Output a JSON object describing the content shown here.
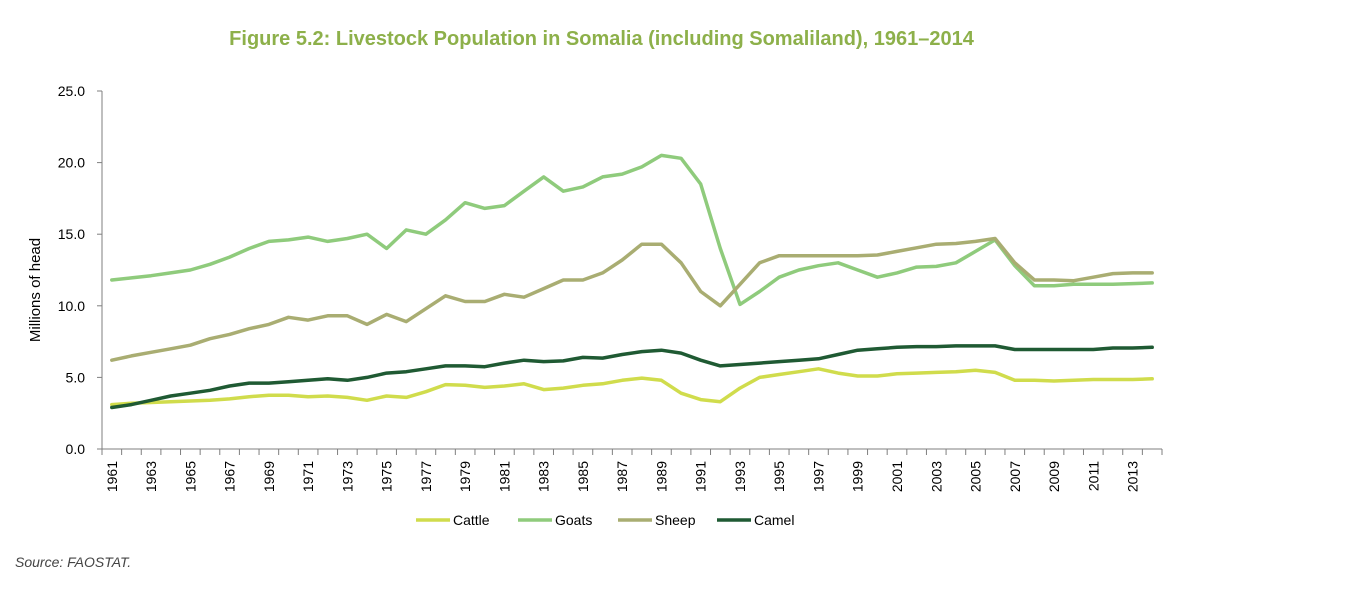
{
  "source": "Source: FAOSTAT.",
  "colors": {
    "title": "#8db04a",
    "cattle": "#d0dc4c",
    "goats": "#8fcb7c",
    "sheep": "#a9ad72",
    "camel": "#1f5a33",
    "axis": "#7f7f7f"
  },
  "chart_data": {
    "type": "line",
    "title": "Figure 5.2: Livestock Population in Somalia (including Somaliland), 1961–2014",
    "xlabel": "",
    "ylabel": "Millions of head",
    "ylim": [
      0,
      25
    ],
    "yticks": [
      "0.0",
      "5.0",
      "10.0",
      "15.0",
      "20.0",
      "25.0"
    ],
    "x": [
      1961,
      1962,
      1963,
      1964,
      1965,
      1966,
      1967,
      1968,
      1969,
      1970,
      1971,
      1972,
      1973,
      1974,
      1975,
      1976,
      1977,
      1978,
      1979,
      1980,
      1981,
      1982,
      1983,
      1984,
      1985,
      1986,
      1987,
      1988,
      1989,
      1990,
      1991,
      1992,
      1993,
      1994,
      1995,
      1996,
      1997,
      1998,
      1999,
      2000,
      2001,
      2002,
      2003,
      2004,
      2005,
      2006,
      2007,
      2008,
      2009,
      2010,
      2011,
      2012,
      2013,
      2014
    ],
    "xticks": [
      "1961",
      "1963",
      "1965",
      "1967",
      "1969",
      "1971",
      "1973",
      "1975",
      "1977",
      "1979",
      "1981",
      "1983",
      "1985",
      "1987",
      "1989",
      "1991",
      "1993",
      "1995",
      "1997",
      "1999",
      "2001",
      "2003",
      "2005",
      "2007",
      "2009",
      "2011",
      "2013"
    ],
    "legend_position": "bottom",
    "series": [
      {
        "name": "Cattle",
        "color": "#d0dc4c",
        "values": [
          3.1,
          3.2,
          3.25,
          3.3,
          3.35,
          3.4,
          3.5,
          3.65,
          3.75,
          3.75,
          3.65,
          3.7,
          3.6,
          3.4,
          3.7,
          3.6,
          4.0,
          4.5,
          4.45,
          4.3,
          4.4,
          4.55,
          4.15,
          4.25,
          4.45,
          4.55,
          4.8,
          4.95,
          4.8,
          3.9,
          3.45,
          3.3,
          4.25,
          5.0,
          5.2,
          5.4,
          5.6,
          5.3,
          5.1,
          5.1,
          5.25,
          5.3,
          5.35,
          5.4,
          5.5,
          5.35,
          4.8,
          4.8,
          4.75,
          4.8,
          4.85,
          4.85,
          4.85,
          4.9
        ]
      },
      {
        "name": "Goats",
        "color": "#8fcb7c",
        "values": [
          11.8,
          11.95,
          12.1,
          12.3,
          12.5,
          12.9,
          13.4,
          14.0,
          14.5,
          14.6,
          14.8,
          14.5,
          14.7,
          15.0,
          14.0,
          15.3,
          15.0,
          16.0,
          17.2,
          16.8,
          17.0,
          18.0,
          19.0,
          18.0,
          18.3,
          19.0,
          19.2,
          19.7,
          20.5,
          20.3,
          18.5,
          14.0,
          10.1,
          11.0,
          12.0,
          12.5,
          12.8,
          13.0,
          12.5,
          12.0,
          12.3,
          12.7,
          12.75,
          13.0,
          13.8,
          14.6,
          12.8,
          11.4,
          11.4,
          11.5,
          11.5,
          11.5,
          11.55,
          11.6
        ]
      },
      {
        "name": "Sheep",
        "color": "#a9ad72",
        "values": [
          6.2,
          6.5,
          6.75,
          7.0,
          7.25,
          7.7,
          8.0,
          8.4,
          8.7,
          9.2,
          9.0,
          9.3,
          9.3,
          8.7,
          9.4,
          8.9,
          9.8,
          10.7,
          10.3,
          10.3,
          10.8,
          10.6,
          11.2,
          11.8,
          11.8,
          12.3,
          13.2,
          14.3,
          14.3,
          13.0,
          11.0,
          10.0,
          11.5,
          13.0,
          13.5,
          13.5,
          13.5,
          13.5,
          13.5,
          13.55,
          13.8,
          14.05,
          14.3,
          14.35,
          14.5,
          14.7,
          13.0,
          11.8,
          11.8,
          11.75,
          12.0,
          12.25,
          12.3,
          12.3
        ]
      },
      {
        "name": "Camel",
        "color": "#1f5a33",
        "values": [
          2.9,
          3.1,
          3.4,
          3.7,
          3.9,
          4.1,
          4.4,
          4.6,
          4.6,
          4.7,
          4.8,
          4.9,
          4.8,
          5.0,
          5.3,
          5.4,
          5.6,
          5.8,
          5.8,
          5.75,
          6.0,
          6.2,
          6.1,
          6.15,
          6.4,
          6.35,
          6.6,
          6.8,
          6.9,
          6.7,
          6.2,
          5.8,
          5.9,
          6.0,
          6.1,
          6.2,
          6.3,
          6.6,
          6.9,
          7.0,
          7.1,
          7.15,
          7.15,
          7.2,
          7.2,
          7.2,
          6.95,
          6.95,
          6.95,
          6.95,
          6.95,
          7.05,
          7.05,
          7.1
        ]
      }
    ]
  }
}
